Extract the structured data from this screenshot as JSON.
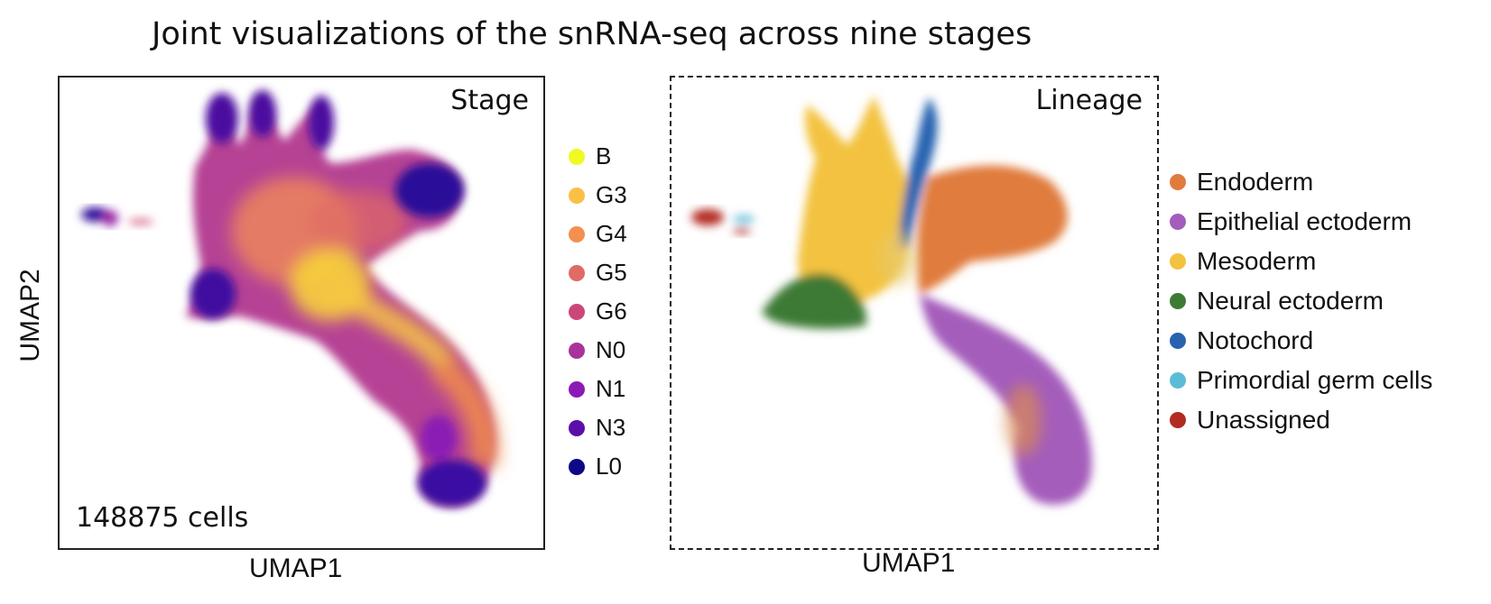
{
  "title": "Joint visualizations of the snRNA-seq across nine stages",
  "chart_data": [
    {
      "type": "scatter",
      "panel_label": "Stage",
      "annotation": "148875 cells",
      "xlabel": "UMAP1",
      "ylabel": "UMAP2",
      "legend_position": "right",
      "legend": [
        {
          "label": "B",
          "color": "#f0f921"
        },
        {
          "label": "G3",
          "color": "#fbbf45"
        },
        {
          "label": "G4",
          "color": "#f3904f"
        },
        {
          "label": "G5",
          "color": "#e06b65"
        },
        {
          "label": "G6",
          "color": "#cc4778"
        },
        {
          "label": "N0",
          "color": "#a8349b"
        },
        {
          "label": "N1",
          "color": "#8b1ab4"
        },
        {
          "label": "N3",
          "color": "#5c0fa8"
        },
        {
          "label": "L0",
          "color": "#0d0887"
        }
      ]
    },
    {
      "type": "scatter",
      "panel_label": "Lineage",
      "xlabel": "UMAP1",
      "legend_position": "right",
      "legend": [
        {
          "label": "Endoderm",
          "color": "#e07b3c"
        },
        {
          "label": "Epithelial ectoderm",
          "color": "#a45dbb"
        },
        {
          "label": "Mesoderm",
          "color": "#f3c23f"
        },
        {
          "label": "Neural ectoderm",
          "color": "#3e7a35"
        },
        {
          "label": "Notochord",
          "color": "#2863b0"
        },
        {
          "label": "Primordial germ cells",
          "color": "#5cbcd6"
        },
        {
          "label": "Unassigned",
          "color": "#b32a22"
        }
      ]
    }
  ]
}
